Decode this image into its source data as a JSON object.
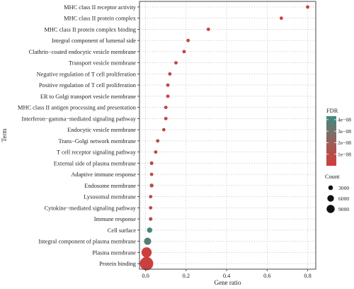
{
  "chart_data": {
    "type": "scatter",
    "xlabel": "Gene ratio",
    "ylabel": "Term",
    "xlim": [
      -0.03,
      0.84
    ],
    "x_ticks": [
      "0.0",
      "0.2",
      "0.4",
      "0.6",
      "0.8"
    ],
    "x_tick_values": [
      0.0,
      0.2,
      0.4,
      0.6,
      0.8
    ],
    "grid": true,
    "legend_position": "right",
    "color_legend": {
      "title": "FDR",
      "ticks": [
        "4e−08",
        "3e−08",
        "2e−08",
        "1e−08"
      ],
      "tick_values": [
        4e-08,
        3e-08,
        2e-08,
        1e-08
      ],
      "range": [
        0,
        4.3e-08
      ],
      "low_color": "#d23c3c",
      "high_color": "#3e8a80"
    },
    "size_legend": {
      "title": "Count",
      "ticks": [
        "3000",
        "6000",
        "9000"
      ],
      "tick_values": [
        3000,
        6000,
        9000
      ]
    },
    "points": [
      {
        "term": "MHC class II receptor activity",
        "gene_ratio": 0.8,
        "fdr": 2e-09,
        "count": 12
      },
      {
        "term": "MHC class II protein complex",
        "gene_ratio": 0.67,
        "fdr": 2e-09,
        "count": 15
      },
      {
        "term": "MHC class II protein complex binding",
        "gene_ratio": 0.31,
        "fdr": 3e-09,
        "count": 20
      },
      {
        "term": "Integral component of lumenal side",
        "gene_ratio": 0.21,
        "fdr": 3e-09,
        "count": 25
      },
      {
        "term": "Clathrin−coated endocytic vesicle membrane",
        "gene_ratio": 0.19,
        "fdr": 3e-09,
        "count": 40
      },
      {
        "term": "Transport vesicle membrane",
        "gene_ratio": 0.15,
        "fdr": 4e-09,
        "count": 60
      },
      {
        "term": "Negative regulation of T cell proliferation",
        "gene_ratio": 0.12,
        "fdr": 4e-09,
        "count": 55
      },
      {
        "term": "Positive regulation of T cell proliferation",
        "gene_ratio": 0.11,
        "fdr": 4e-09,
        "count": 70
      },
      {
        "term": "ER to Golgi transport vesicle membrane",
        "gene_ratio": 0.11,
        "fdr": 4e-09,
        "count": 80
      },
      {
        "term": "MHC class II antigen processing and presentation",
        "gene_ratio": 0.1,
        "fdr": 5e-09,
        "count": 90
      },
      {
        "term": "Interferon−gamma−mediated signaling pathway",
        "gene_ratio": 0.1,
        "fdr": 5e-09,
        "count": 85
      },
      {
        "term": "Endocytic vesicle membrane",
        "gene_ratio": 0.09,
        "fdr": 6e-09,
        "count": 150
      },
      {
        "term": "Trans−Golgi network membrane",
        "gene_ratio": 0.06,
        "fdr": 7e-09,
        "count": 200
      },
      {
        "term": "T cell receptor signaling pathway",
        "gene_ratio": 0.05,
        "fdr": 8e-09,
        "count": 250
      },
      {
        "term": "External side of plasma membrane",
        "gene_ratio": 0.03,
        "fdr": 9e-09,
        "count": 700
      },
      {
        "term": "Adaptive immune response",
        "gene_ratio": 0.03,
        "fdr": 1e-08,
        "count": 600
      },
      {
        "term": "Endosome membrane",
        "gene_ratio": 0.03,
        "fdr": 1.6e-08,
        "count": 800
      },
      {
        "term": "Lysosomal membrane",
        "gene_ratio": 0.025,
        "fdr": 1.1e-08,
        "count": 600
      },
      {
        "term": "Cytokine−mediated signaling pathway",
        "gene_ratio": 0.025,
        "fdr": 1.1e-08,
        "count": 550
      },
      {
        "term": "Immune response",
        "gene_ratio": 0.025,
        "fdr": 1.2e-08,
        "count": 700
      },
      {
        "term": "Cell surface",
        "gene_ratio": 0.02,
        "fdr": 4.2e-08,
        "count": 1500
      },
      {
        "term": "Integral component of plasma membrane",
        "gene_ratio": 0.01,
        "fdr": 3.6e-08,
        "count": 2800
      },
      {
        "term": "Plasma membrane",
        "gene_ratio": 0.005,
        "fdr": 2e-09,
        "count": 5500
      },
      {
        "term": "Protein binding",
        "gene_ratio": 0.005,
        "fdr": 2e-09,
        "count": 9500
      }
    ]
  }
}
